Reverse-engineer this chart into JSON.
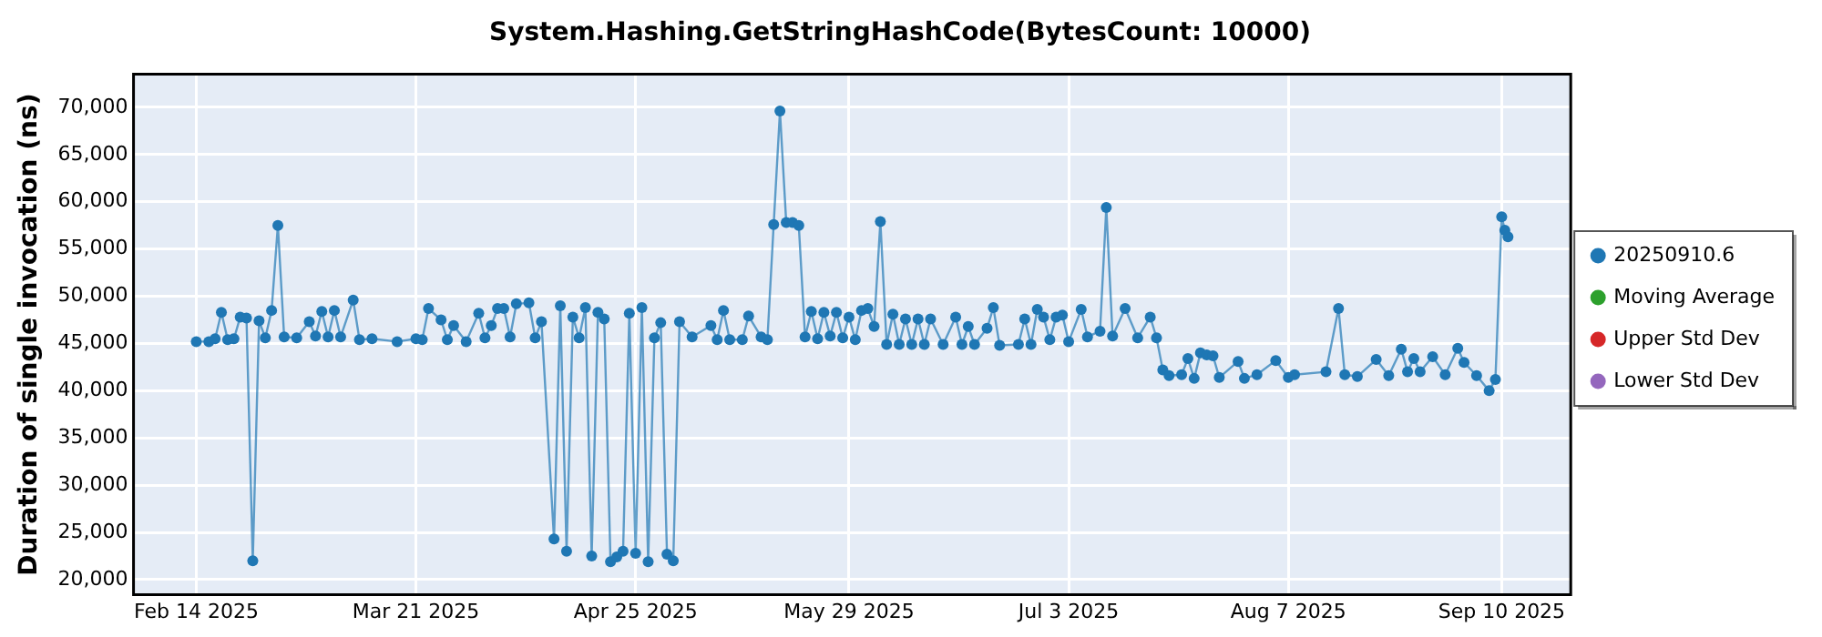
{
  "chart_data": {
    "type": "line",
    "title": "System.Hashing.GetStringHashCode(BytesCount: 10000)",
    "ylabel": "Duration of single invocation (ns)",
    "xlim": [
      "2025-02-04",
      "2025-09-21"
    ],
    "xticks": [
      {
        "value": "2025-02-14",
        "label": "Feb 14 2025"
      },
      {
        "value": "2025-03-21",
        "label": "Mar 21 2025"
      },
      {
        "value": "2025-04-25",
        "label": "Apr 25 2025"
      },
      {
        "value": "2025-05-29",
        "label": "May 29 2025"
      },
      {
        "value": "2025-07-03",
        "label": "Jul 3 2025"
      },
      {
        "value": "2025-08-07",
        "label": "Aug 7 2025"
      },
      {
        "value": "2025-09-10",
        "label": "Sep 10 2025"
      }
    ],
    "ylim": [
      18400,
      73500
    ],
    "yticks": [
      {
        "value": 20000,
        "label": "20,000"
      },
      {
        "value": 25000,
        "label": "25,000"
      },
      {
        "value": 30000,
        "label": "30,000"
      },
      {
        "value": 35000,
        "label": "35,000"
      },
      {
        "value": 40000,
        "label": "40,000"
      },
      {
        "value": 45000,
        "label": "45,000"
      },
      {
        "value": 50000,
        "label": "50,000"
      },
      {
        "value": 55000,
        "label": "55,000"
      },
      {
        "value": 60000,
        "label": "60,000"
      },
      {
        "value": 65000,
        "label": "65,000"
      },
      {
        "value": 70000,
        "label": "70,000"
      }
    ],
    "grid": true,
    "legend": "right",
    "marker": "circle",
    "series": [
      {
        "name": "20250910.6",
        "color": "#1f77b4",
        "x": [
          "2025-02-14",
          "2025-02-16",
          "2025-02-17",
          "2025-02-18",
          "2025-02-19",
          "2025-02-20",
          "2025-02-21",
          "2025-02-22",
          "2025-02-23",
          "2025-02-24",
          "2025-02-25",
          "2025-02-26",
          "2025-02-27",
          "2025-02-28",
          "2025-03-02",
          "2025-03-04",
          "2025-03-05",
          "2025-03-06",
          "2025-03-07",
          "2025-03-08",
          "2025-03-09",
          "2025-03-11",
          "2025-03-12",
          "2025-03-14",
          "2025-03-18",
          "2025-03-21",
          "2025-03-22",
          "2025-03-23",
          "2025-03-25",
          "2025-03-26",
          "2025-03-27",
          "2025-03-29",
          "2025-03-31",
          "2025-04-01",
          "2025-04-02",
          "2025-04-03",
          "2025-04-04",
          "2025-04-05",
          "2025-04-06",
          "2025-04-08",
          "2025-04-09",
          "2025-04-10",
          "2025-04-12",
          "2025-04-13",
          "2025-04-14",
          "2025-04-15",
          "2025-04-16",
          "2025-04-17",
          "2025-04-18",
          "2025-04-19",
          "2025-04-20",
          "2025-04-21",
          "2025-04-22",
          "2025-04-23",
          "2025-04-24",
          "2025-04-25",
          "2025-04-26",
          "2025-04-27",
          "2025-04-28",
          "2025-04-29",
          "2025-04-30",
          "2025-05-01",
          "2025-05-02",
          "2025-05-04",
          "2025-05-07",
          "2025-05-08",
          "2025-05-09",
          "2025-05-10",
          "2025-05-12",
          "2025-05-13",
          "2025-05-15",
          "2025-05-16",
          "2025-05-17",
          "2025-05-18",
          "2025-05-19",
          "2025-05-20",
          "2025-05-21",
          "2025-05-22",
          "2025-05-23",
          "2025-05-24",
          "2025-05-25",
          "2025-05-26",
          "2025-05-27",
          "2025-05-28",
          "2025-05-29",
          "2025-05-30",
          "2025-05-31",
          "2025-06-01",
          "2025-06-02",
          "2025-06-03",
          "2025-06-04",
          "2025-06-05",
          "2025-06-06",
          "2025-06-07",
          "2025-06-08",
          "2025-06-09",
          "2025-06-10",
          "2025-06-11",
          "2025-06-13",
          "2025-06-15",
          "2025-06-16",
          "2025-06-17",
          "2025-06-18",
          "2025-06-20",
          "2025-06-21",
          "2025-06-22",
          "2025-06-25",
          "2025-06-26",
          "2025-06-27",
          "2025-06-28",
          "2025-06-29",
          "2025-06-30",
          "2025-07-01",
          "2025-07-02",
          "2025-07-03",
          "2025-07-05",
          "2025-07-06",
          "2025-07-08",
          "2025-07-09",
          "2025-07-10",
          "2025-07-12",
          "2025-07-14",
          "2025-07-16",
          "2025-07-17",
          "2025-07-18",
          "2025-07-19",
          "2025-07-21",
          "2025-07-22",
          "2025-07-23",
          "2025-07-24",
          "2025-07-25",
          "2025-07-26",
          "2025-07-27",
          "2025-07-30",
          "2025-07-31",
          "2025-08-02",
          "2025-08-05",
          "2025-08-07",
          "2025-08-08",
          "2025-08-13",
          "2025-08-15",
          "2025-08-16",
          "2025-08-18",
          "2025-08-21",
          "2025-08-23",
          "2025-08-25",
          "2025-08-26",
          "2025-08-27",
          "2025-08-28",
          "2025-08-30",
          "2025-09-01",
          "2025-09-03",
          "2025-09-04",
          "2025-09-06",
          "2025-09-08",
          "2025-09-09",
          "2025-09-10",
          "2025-09-10T12:00",
          "2025-09-11"
        ],
        "values": [
          45200,
          45200,
          45500,
          48300,
          45400,
          45500,
          47800,
          47700,
          22000,
          47400,
          45600,
          48500,
          57500,
          45700,
          45600,
          47300,
          45800,
          48400,
          45700,
          48500,
          45700,
          49600,
          45400,
          45500,
          45200,
          45500,
          45400,
          48700,
          47500,
          45400,
          46900,
          45200,
          48200,
          45600,
          46900,
          48700,
          48700,
          45700,
          49200,
          49300,
          45600,
          47300,
          24300,
          49000,
          23000,
          47800,
          45600,
          48800,
          22500,
          48300,
          47600,
          21900,
          22400,
          23000,
          48200,
          22800,
          48800,
          21900,
          45600,
          47200,
          22700,
          22000,
          47300,
          45700,
          46900,
          45400,
          48500,
          45400,
          45400,
          47900,
          45700,
          45400,
          57600,
          69600,
          57800,
          57800,
          57500,
          45700,
          48400,
          45500,
          48300,
          45800,
          48300,
          45600,
          47800,
          45400,
          48500,
          48700,
          46800,
          57900,
          44900,
          48100,
          44900,
          47600,
          44900,
          47600,
          44900,
          47600,
          44900,
          47800,
          44900,
          46800,
          44900,
          46600,
          48800,
          44800,
          44900,
          47600,
          44900,
          48600,
          47800,
          45400,
          47800,
          48000,
          45200,
          48600,
          45700,
          46300,
          59400,
          45800,
          48700,
          45600,
          47800,
          45600,
          42200,
          41600,
          41700,
          43400,
          41300,
          44000,
          43800,
          43700,
          41400,
          43100,
          41300,
          41700,
          43200,
          41400,
          41700,
          42000,
          48700,
          41700,
          41500,
          43300,
          41600,
          44400,
          42000,
          43400,
          42000,
          43600,
          41700,
          44500,
          43000,
          41600,
          40000,
          41200,
          58400,
          57000,
          56300
        ]
      },
      {
        "name": "Moving Average",
        "color": "#2ca02c"
      },
      {
        "name": "Upper Std Dev",
        "color": "#d62728"
      },
      {
        "name": "Lower Std Dev",
        "color": "#9467bd"
      }
    ]
  }
}
